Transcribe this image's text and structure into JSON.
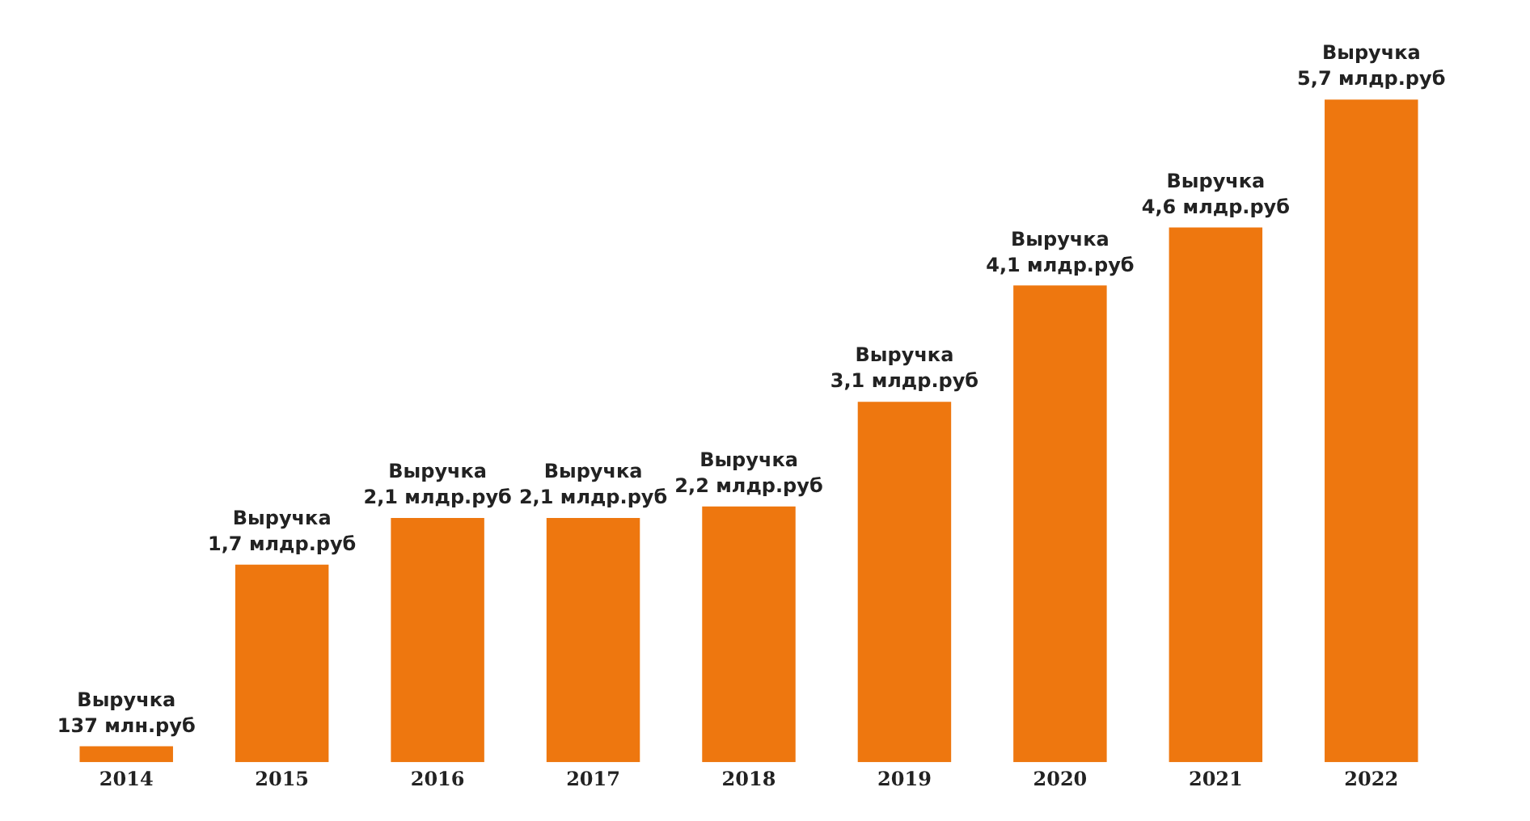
{
  "chart_data": {
    "type": "bar",
    "categories": [
      "2014",
      "2015",
      "2016",
      "2017",
      "2018",
      "2019",
      "2020",
      "2021",
      "2022"
    ],
    "values": [
      0.137,
      1.7,
      2.1,
      2.1,
      2.2,
      3.1,
      4.1,
      4.6,
      5.7
    ],
    "value_labels": [
      "Выручка\n137 млн.руб",
      "Выручка\n1,7 млдр.руб",
      "Выручка\n2,1 млдр.руб",
      "Выручка\n2,1 млдр.руб",
      "Выручка\n2,2 млдр.руб",
      "Выручка\n3,1 млдр.руб",
      "Выручка\n4,1 млдр.руб",
      "Выручка\n4,6 млдр.руб",
      "Выручка\n5,7 млдр.руб"
    ],
    "color": "#ee770f",
    "grid": false,
    "legend": false
  }
}
